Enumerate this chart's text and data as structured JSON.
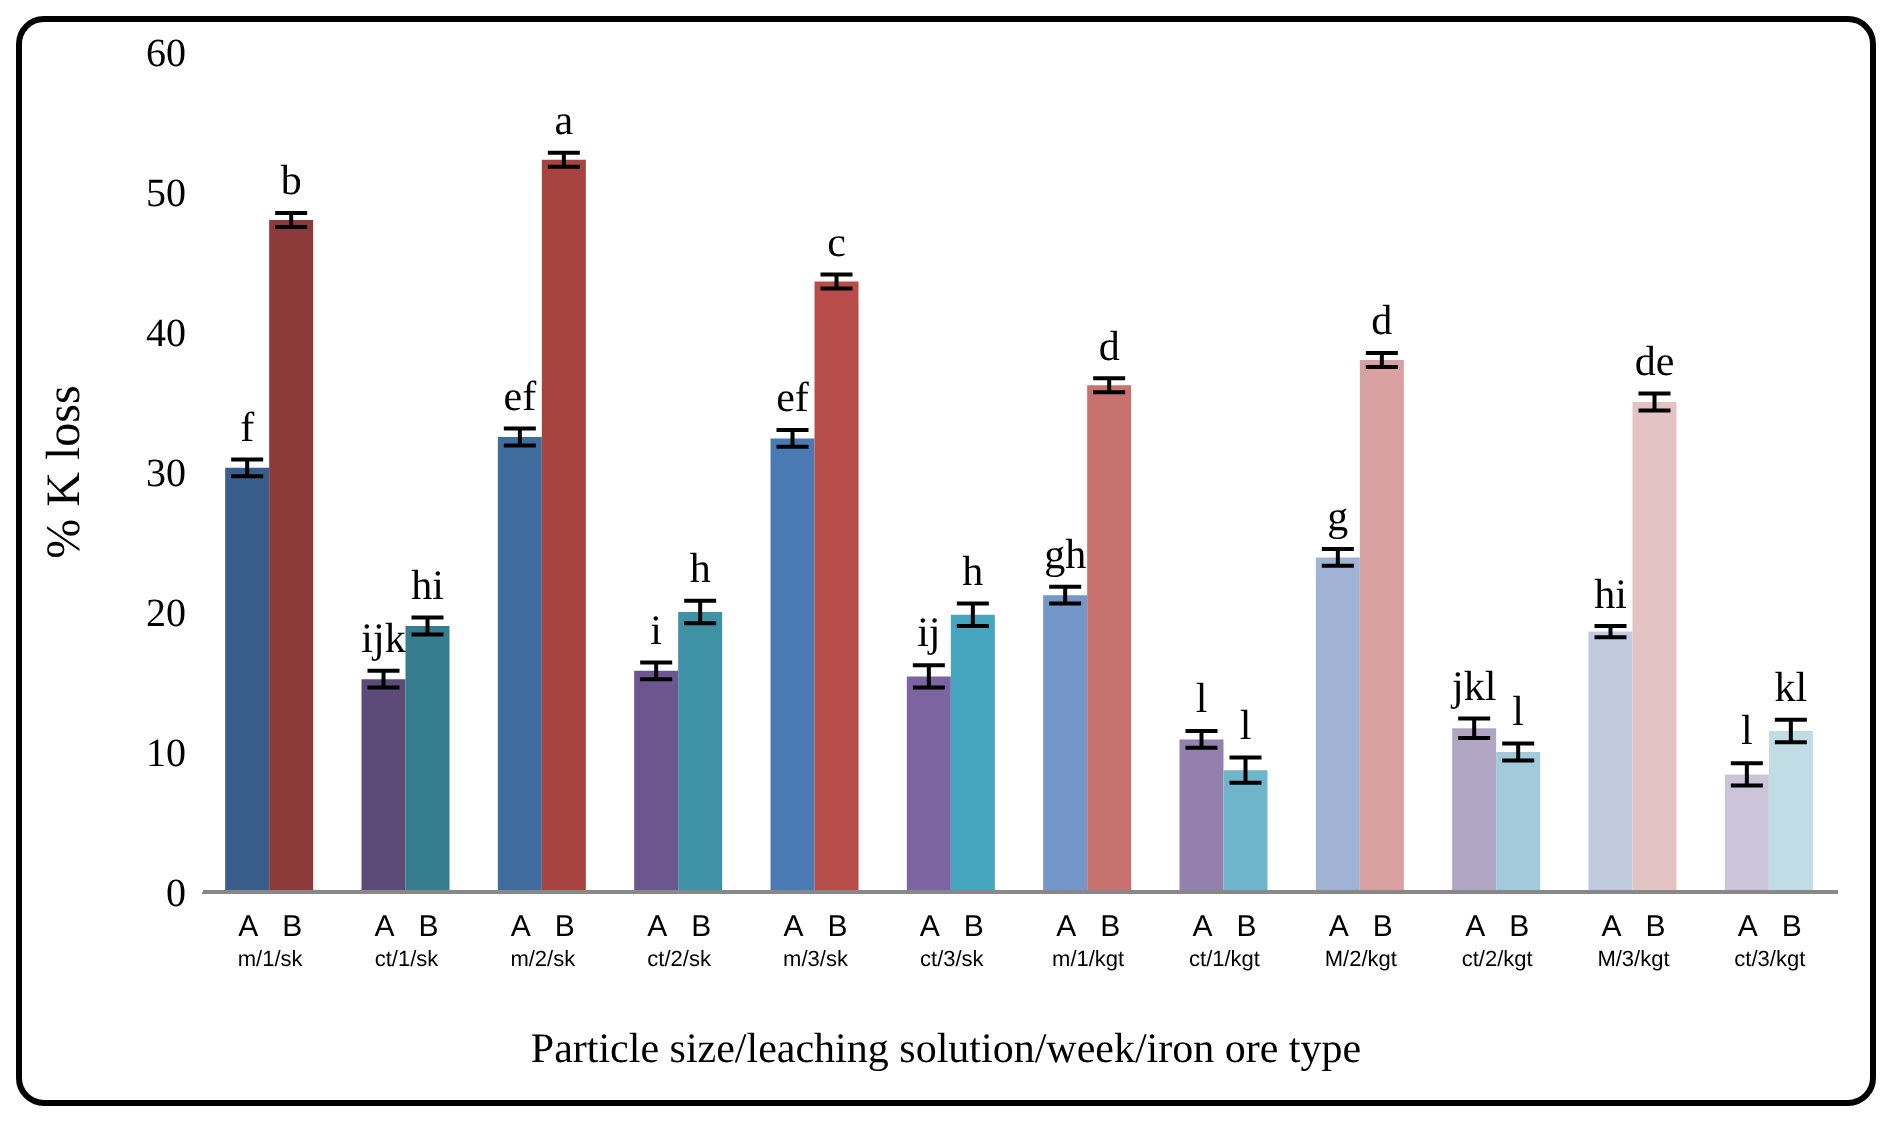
{
  "chart_data": {
    "type": "bar",
    "xlabel": "Particle size/leaching solution/week/iron ore type",
    "ylabel": "% K loss",
    "categories": [
      "m/1/sk",
      "ct/1/sk",
      "m/2/sk",
      "ct/2/sk",
      "m/3/sk",
      "ct/3/sk",
      "m/1/kgt",
      "ct/1/kgt",
      "M/2/kgt",
      "ct/2/kgt",
      "M/3/kgt",
      "ct/3/kgt"
    ],
    "series": [
      {
        "name": "A",
        "colors": [
          "#3a5e8c",
          "#5c4a78",
          "#416c9e",
          "#6c5690",
          "#4a7ab4",
          "#7c64a0",
          "#7496c8",
          "#9380ad",
          "#a0b3d4",
          "#b1a6c4",
          "#c1cbe0",
          "#ccc4d8"
        ],
        "values": [
          30.3,
          15.2,
          32.5,
          15.8,
          32.4,
          15.4,
          21.2,
          10.9,
          23.9,
          11.7,
          18.6,
          8.4
        ],
        "errors": [
          0.6,
          0.6,
          0.6,
          0.6,
          0.6,
          0.8,
          0.6,
          0.6,
          0.6,
          0.7,
          0.4,
          0.8
        ]
      },
      {
        "name": "B",
        "colors": [
          "#8c3a3a",
          "#357d8f",
          "#a84440",
          "#3f91a6",
          "#b84c48",
          "#47a6bf",
          "#c87270",
          "#6fb6cc",
          "#d8a0a0",
          "#a2cadb",
          "#e3c3c4",
          "#c2dce5"
        ],
        "values": [
          48.0,
          19.0,
          52.3,
          20.0,
          43.6,
          19.8,
          36.2,
          8.7,
          38.0,
          10.0,
          35.0,
          11.5
        ],
        "errors": [
          0.5,
          0.6,
          0.5,
          0.8,
          0.5,
          0.8,
          0.5,
          0.9,
          0.5,
          0.6,
          0.6,
          0.8
        ]
      }
    ],
    "annotations": [
      {
        "text": "f",
        "x": "m/1/sk",
        "y": 30.3
      },
      {
        "text": "b",
        "x": "m/1/sk",
        "y": 48.0
      },
      {
        "text": "ijk",
        "x": "ct/1/sk",
        "y": 15.2
      },
      {
        "text": "hi",
        "x": "ct/1/sk",
        "y": 19.0
      },
      {
        "text": "ef",
        "x": "m/2/sk",
        "y": 32.5
      },
      {
        "text": "a",
        "x": "m/2/sk",
        "y": 52.3
      },
      {
        "text": "i",
        "x": "ct/2/sk",
        "y": 15.8
      },
      {
        "text": "h",
        "x": "ct/2/sk",
        "y": 20.0
      },
      {
        "text": "ef",
        "x": "m/3/sk",
        "y": 32.4
      },
      {
        "text": "c",
        "x": "m/3/sk",
        "y": 43.6
      },
      {
        "text": "ij",
        "x": "ct/3/sk",
        "y": 15.4
      },
      {
        "text": "h",
        "x": "ct/3/sk",
        "y": 19.8
      },
      {
        "text": "gh",
        "x": "m/1/kgt",
        "y": 21.2
      },
      {
        "text": "d",
        "x": "m/1/kgt",
        "y": 36.2
      },
      {
        "text": "l",
        "x": "ct/1/kgt",
        "y": 10.9
      },
      {
        "text": "l",
        "x": "ct/1/kgt",
        "y": 8.7
      },
      {
        "text": "g",
        "x": "M/2/kgt",
        "y": 23.9
      },
      {
        "text": "d",
        "x": "M/2/kgt",
        "y": 38.0
      },
      {
        "text": "jkl",
        "x": "ct/2/kgt",
        "y": 11.7
      },
      {
        "text": "l",
        "x": "ct/2/kgt",
        "y": 10.0
      },
      {
        "text": "hi",
        "x": "M/3/kgt",
        "y": 18.6
      },
      {
        "text": "de",
        "x": "M/3/kgt",
        "y": 35.0
      },
      {
        "text": "l",
        "x": "ct/3/kgt",
        "y": 8.4
      },
      {
        "text": "kl",
        "x": "ct/3/kgt",
        "y": 11.5
      }
    ],
    "ylim": [
      0,
      60
    ],
    "yticks": [
      0,
      10,
      20,
      30,
      40,
      50,
      60
    ],
    "grid": false,
    "legend": false
  }
}
